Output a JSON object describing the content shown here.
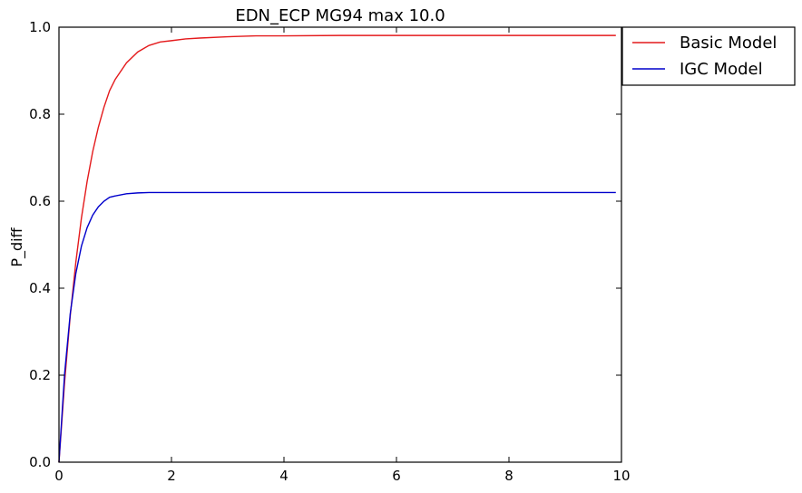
{
  "chart_data": {
    "type": "line",
    "title": "EDN_ECP MG94 max 10.0",
    "xlabel": "",
    "ylabel": "P_diff",
    "xlim": [
      0,
      10
    ],
    "ylim": [
      0,
      1.0
    ],
    "x_ticks": [
      "0",
      "2",
      "4",
      "6",
      "8",
      "10"
    ],
    "y_ticks": [
      "0.0",
      "0.2",
      "0.4",
      "0.6",
      "0.8",
      "1.0"
    ],
    "grid": false,
    "legend_position": "outside-top-right",
    "x": [
      0,
      0.1,
      0.2,
      0.3,
      0.4,
      0.5,
      0.6,
      0.7,
      0.8,
      0.9,
      1.0,
      1.2,
      1.4,
      1.6,
      1.8,
      2.0,
      2.25,
      2.5,
      3.0,
      3.5,
      4.0,
      5.0,
      6.0,
      7.0,
      8.0,
      9.0,
      9.9
    ],
    "series": [
      {
        "name": "Basic Model",
        "color": "#e41a1c",
        "values": [
          0.0,
          0.184,
          0.336,
          0.46,
          0.562,
          0.645,
          0.714,
          0.77,
          0.816,
          0.854,
          0.88,
          0.918,
          0.943,
          0.958,
          0.966,
          0.969,
          0.973,
          0.975,
          0.978,
          0.98,
          0.98,
          0.981,
          0.981,
          0.981,
          0.981,
          0.981,
          0.981
        ]
      },
      {
        "name": "IGC Model",
        "color": "#0000cc",
        "values": [
          0.0,
          0.203,
          0.341,
          0.434,
          0.497,
          0.539,
          0.568,
          0.587,
          0.6,
          0.609,
          0.612,
          0.617,
          0.619,
          0.62,
          0.62,
          0.62,
          0.62,
          0.62,
          0.62,
          0.62,
          0.62,
          0.62,
          0.62,
          0.62,
          0.62,
          0.62,
          0.62
        ]
      }
    ]
  }
}
